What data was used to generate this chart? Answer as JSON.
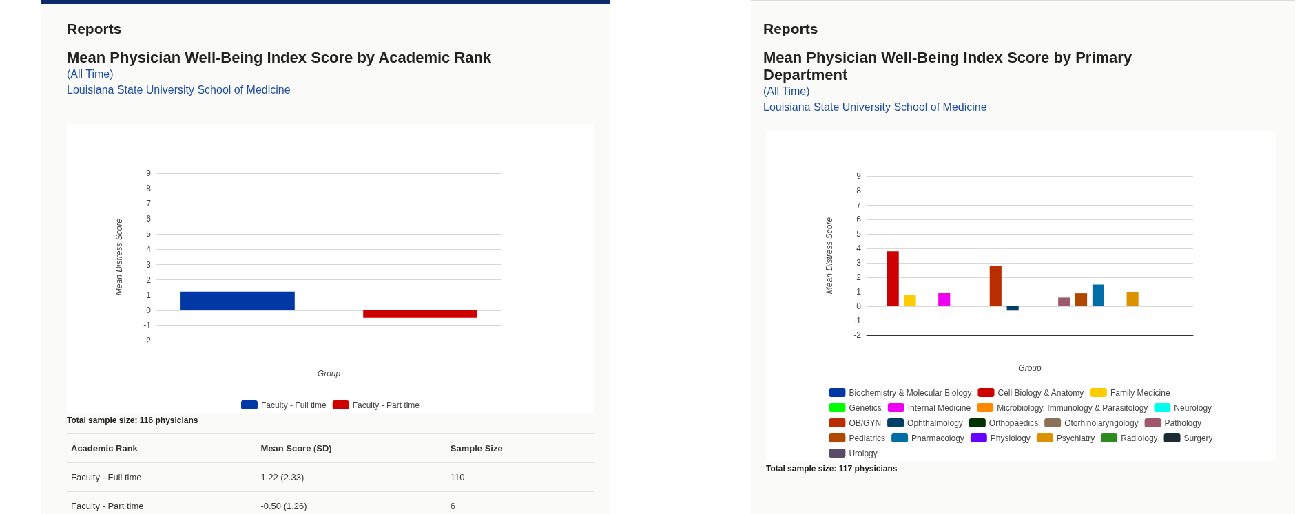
{
  "chart_data": [
    {
      "type": "bar",
      "title": "Mean Physician Well-Being Index Score by Academic Rank",
      "subtitle": "(All Time)",
      "xlabel": "Group",
      "ylabel": "Mean Distress Score",
      "categories": [
        null
      ],
      "series": [
        {
          "name": "Faculty - Full time",
          "color": "#0039a6",
          "values": [
            1.22
          ]
        },
        {
          "name": "Faculty - Part time",
          "color": "#cc0000",
          "values": [
            -0.5
          ]
        }
      ],
      "ylim": [
        -2,
        9
      ],
      "yticks": [
        -2,
        -1,
        0,
        1,
        2,
        3,
        4,
        5,
        6,
        7,
        8,
        9
      ],
      "grid": "y",
      "legend": "bottom",
      "tick_labels": "y",
      "annotations": [
        "Reports",
        "Louisiana State University School of Medicine",
        "Total sample size: 116 physicians",
        "Academic Rank",
        "Mean Score (SD)",
        "Sample Size",
        "Faculty - Full time",
        "1.22 (2.33)",
        "110",
        "Faculty - Part time",
        "-0.50 (1.26)",
        "6"
      ]
    },
    {
      "type": "bar",
      "title": "Mean Physician Well-Being Index Score by Primary Department",
      "subtitle": "(All Time)",
      "xlabel": "Group",
      "ylabel": "Mean Distress Score",
      "categories": [
        null
      ],
      "series": [
        {
          "name": "Biochemistry & Molecular Biology",
          "color": "#0039a6",
          "values": [
            null
          ]
        },
        {
          "name": "Cell Biology & Anatomy",
          "color": "#cc0000",
          "values": [
            3.8
          ]
        },
        {
          "name": "Family Medicine",
          "color": "#ffcc00",
          "values": [
            0.8
          ]
        },
        {
          "name": "Genetics",
          "color": "#00ff00",
          "values": [
            null
          ]
        },
        {
          "name": "Internal Medicine",
          "color": "#f000f0",
          "values": [
            0.9
          ]
        },
        {
          "name": "Microbiology, Immunology & Parasitology",
          "color": "#ff8800",
          "values": [
            null
          ]
        },
        {
          "name": "Neurology",
          "color": "#00ffee",
          "values": [
            null
          ]
        },
        {
          "name": "OB/GYN",
          "color": "#b82e00",
          "values": [
            2.8
          ]
        },
        {
          "name": "Ophthalmology",
          "color": "#003f66",
          "values": [
            -0.3
          ]
        },
        {
          "name": "Orthopaedics",
          "color": "#003300",
          "values": [
            null
          ]
        },
        {
          "name": "Otorhinolaryngology",
          "color": "#8c7159",
          "values": [
            null
          ]
        },
        {
          "name": "Pathology",
          "color": "#9e5a6a",
          "values": [
            0.6
          ]
        },
        {
          "name": "Pediatrics",
          "color": "#b04800",
          "values": [
            0.9
          ]
        },
        {
          "name": "Pharmacology",
          "color": "#006ea6",
          "values": [
            1.5
          ]
        },
        {
          "name": "Physiology",
          "color": "#6600ff",
          "values": [
            null
          ]
        },
        {
          "name": "Psychiatry",
          "color": "#db9100",
          "values": [
            1.0
          ]
        },
        {
          "name": "Radiology",
          "color": "#2e8b22",
          "values": [
            null
          ]
        },
        {
          "name": "Surgery",
          "color": "#1c2a33",
          "values": [
            null
          ]
        },
        {
          "name": "Urology",
          "color": "#5a4c66",
          "values": [
            null
          ]
        }
      ],
      "ylim": [
        -2,
        9
      ],
      "yticks": [
        -2,
        -1,
        0,
        1,
        2,
        3,
        4,
        5,
        6,
        7,
        8,
        9
      ],
      "grid": "y",
      "legend": "bottom",
      "tick_labels": "y",
      "annotations": [
        "Reports",
        "Louisiana State University School of Medicine",
        "Total sample size: 117 physicians"
      ]
    }
  ]
}
